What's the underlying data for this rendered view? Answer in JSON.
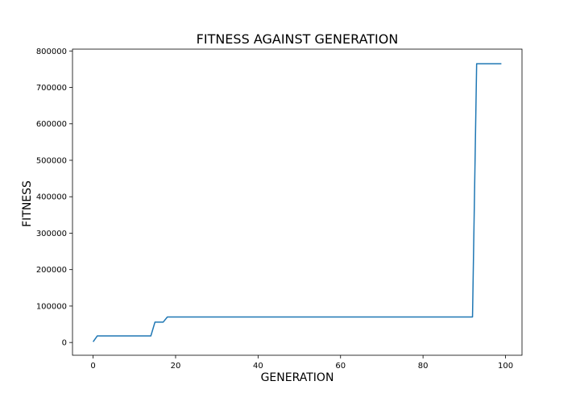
{
  "chart_data": {
    "type": "line",
    "title": "FITNESS AGAINST GENERATION",
    "xlabel": "GENERATION",
    "ylabel": "FITNESS",
    "xlim": [
      -5,
      104
    ],
    "ylim": [
      -35000,
      805000
    ],
    "x_ticks": [
      0,
      20,
      40,
      60,
      80,
      100
    ],
    "x_tick_labels": [
      "0",
      "20",
      "40",
      "60",
      "80",
      "100"
    ],
    "y_ticks": [
      0,
      100000,
      200000,
      300000,
      400000,
      500000,
      600000,
      700000,
      800000
    ],
    "y_tick_labels": [
      "0",
      "100000",
      "200000",
      "300000",
      "400000",
      "500000",
      "600000",
      "700000",
      "800000"
    ],
    "grid": false,
    "line_color": "#1f77b4",
    "series": [
      {
        "x": [
          0,
          1,
          14,
          15,
          17,
          18,
          92,
          93,
          99
        ],
        "y": [
          2000,
          18000,
          18000,
          56000,
          56000,
          70000,
          70000,
          765000,
          765000
        ]
      }
    ]
  }
}
